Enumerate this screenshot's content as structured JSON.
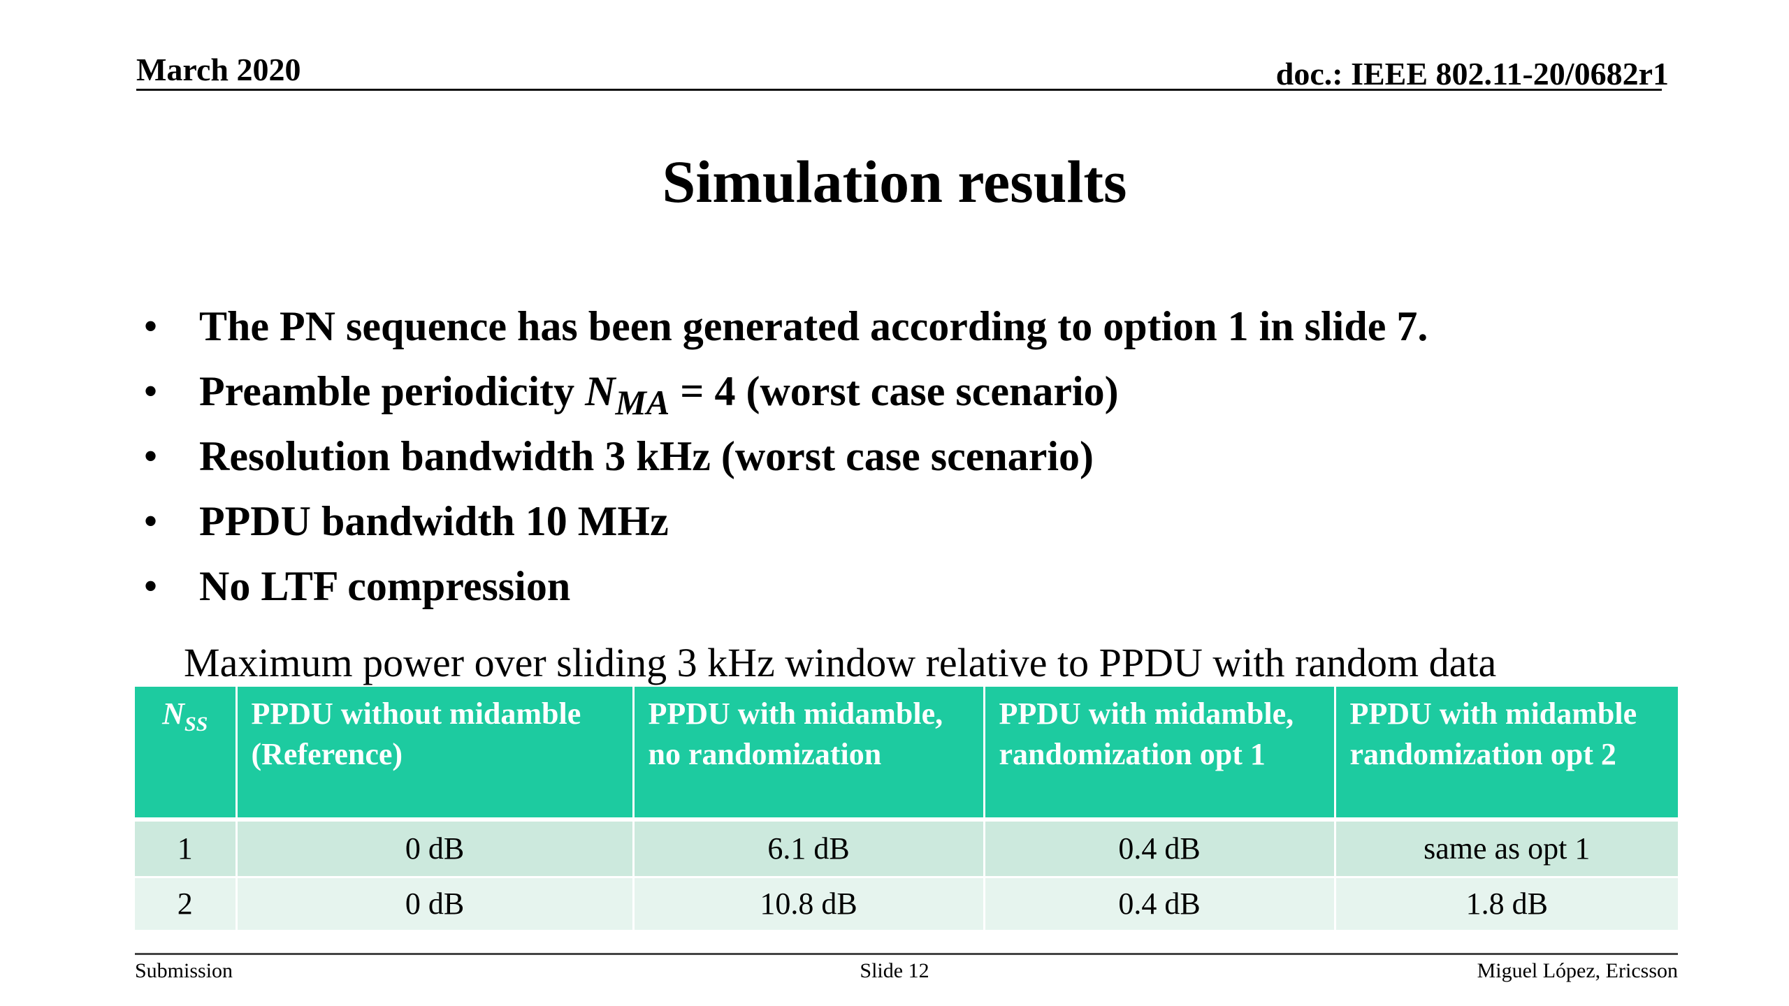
{
  "header": {
    "date": "March 2020",
    "doc": "doc.: IEEE 802.11-20/0682r1"
  },
  "title": "Simulation results",
  "bullets": [
    "The PN sequence has been generated according to option 1 in slide 7.",
    {
      "prefix": "Preamble periodicity ",
      "math_symbol": "N",
      "math_subscript": "MA",
      "math_rest": " = 4",
      "suffix": " (worst case scenario)"
    },
    "Resolution bandwidth 3 kHz (worst case scenario)",
    "PPDU bandwidth 10 MHz",
    "No LTF compression"
  ],
  "bullet_glyph": "•",
  "table": {
    "caption": "Maximum power over sliding 3 kHz window relative to PPDU with random data",
    "header_color": "#1dcba0",
    "row_colors": [
      "#cce9dd",
      "#e6f4ee"
    ],
    "columns": [
      {
        "symbol": "N",
        "subscript": "SS"
      },
      {
        "line1": "PPDU without midamble",
        "line2": "(Reference)"
      },
      {
        "line1": "PPDU with midamble,",
        "line2": "no randomization"
      },
      {
        "line1": "PPDU with midamble,",
        "line2": "randomization opt 1"
      },
      {
        "line1": "PPDU with midamble",
        "line2": "randomization opt 2"
      }
    ],
    "rows": [
      [
        "1",
        "0 dB",
        "6.1 dB",
        "0.4 dB",
        "same as opt 1"
      ],
      [
        "2",
        "0 dB",
        "10.8 dB",
        "0.4 dB",
        "1.8 dB"
      ]
    ]
  },
  "footer": {
    "left": "Submission",
    "center": "Slide 12",
    "right": "Miguel López, Ericsson"
  }
}
